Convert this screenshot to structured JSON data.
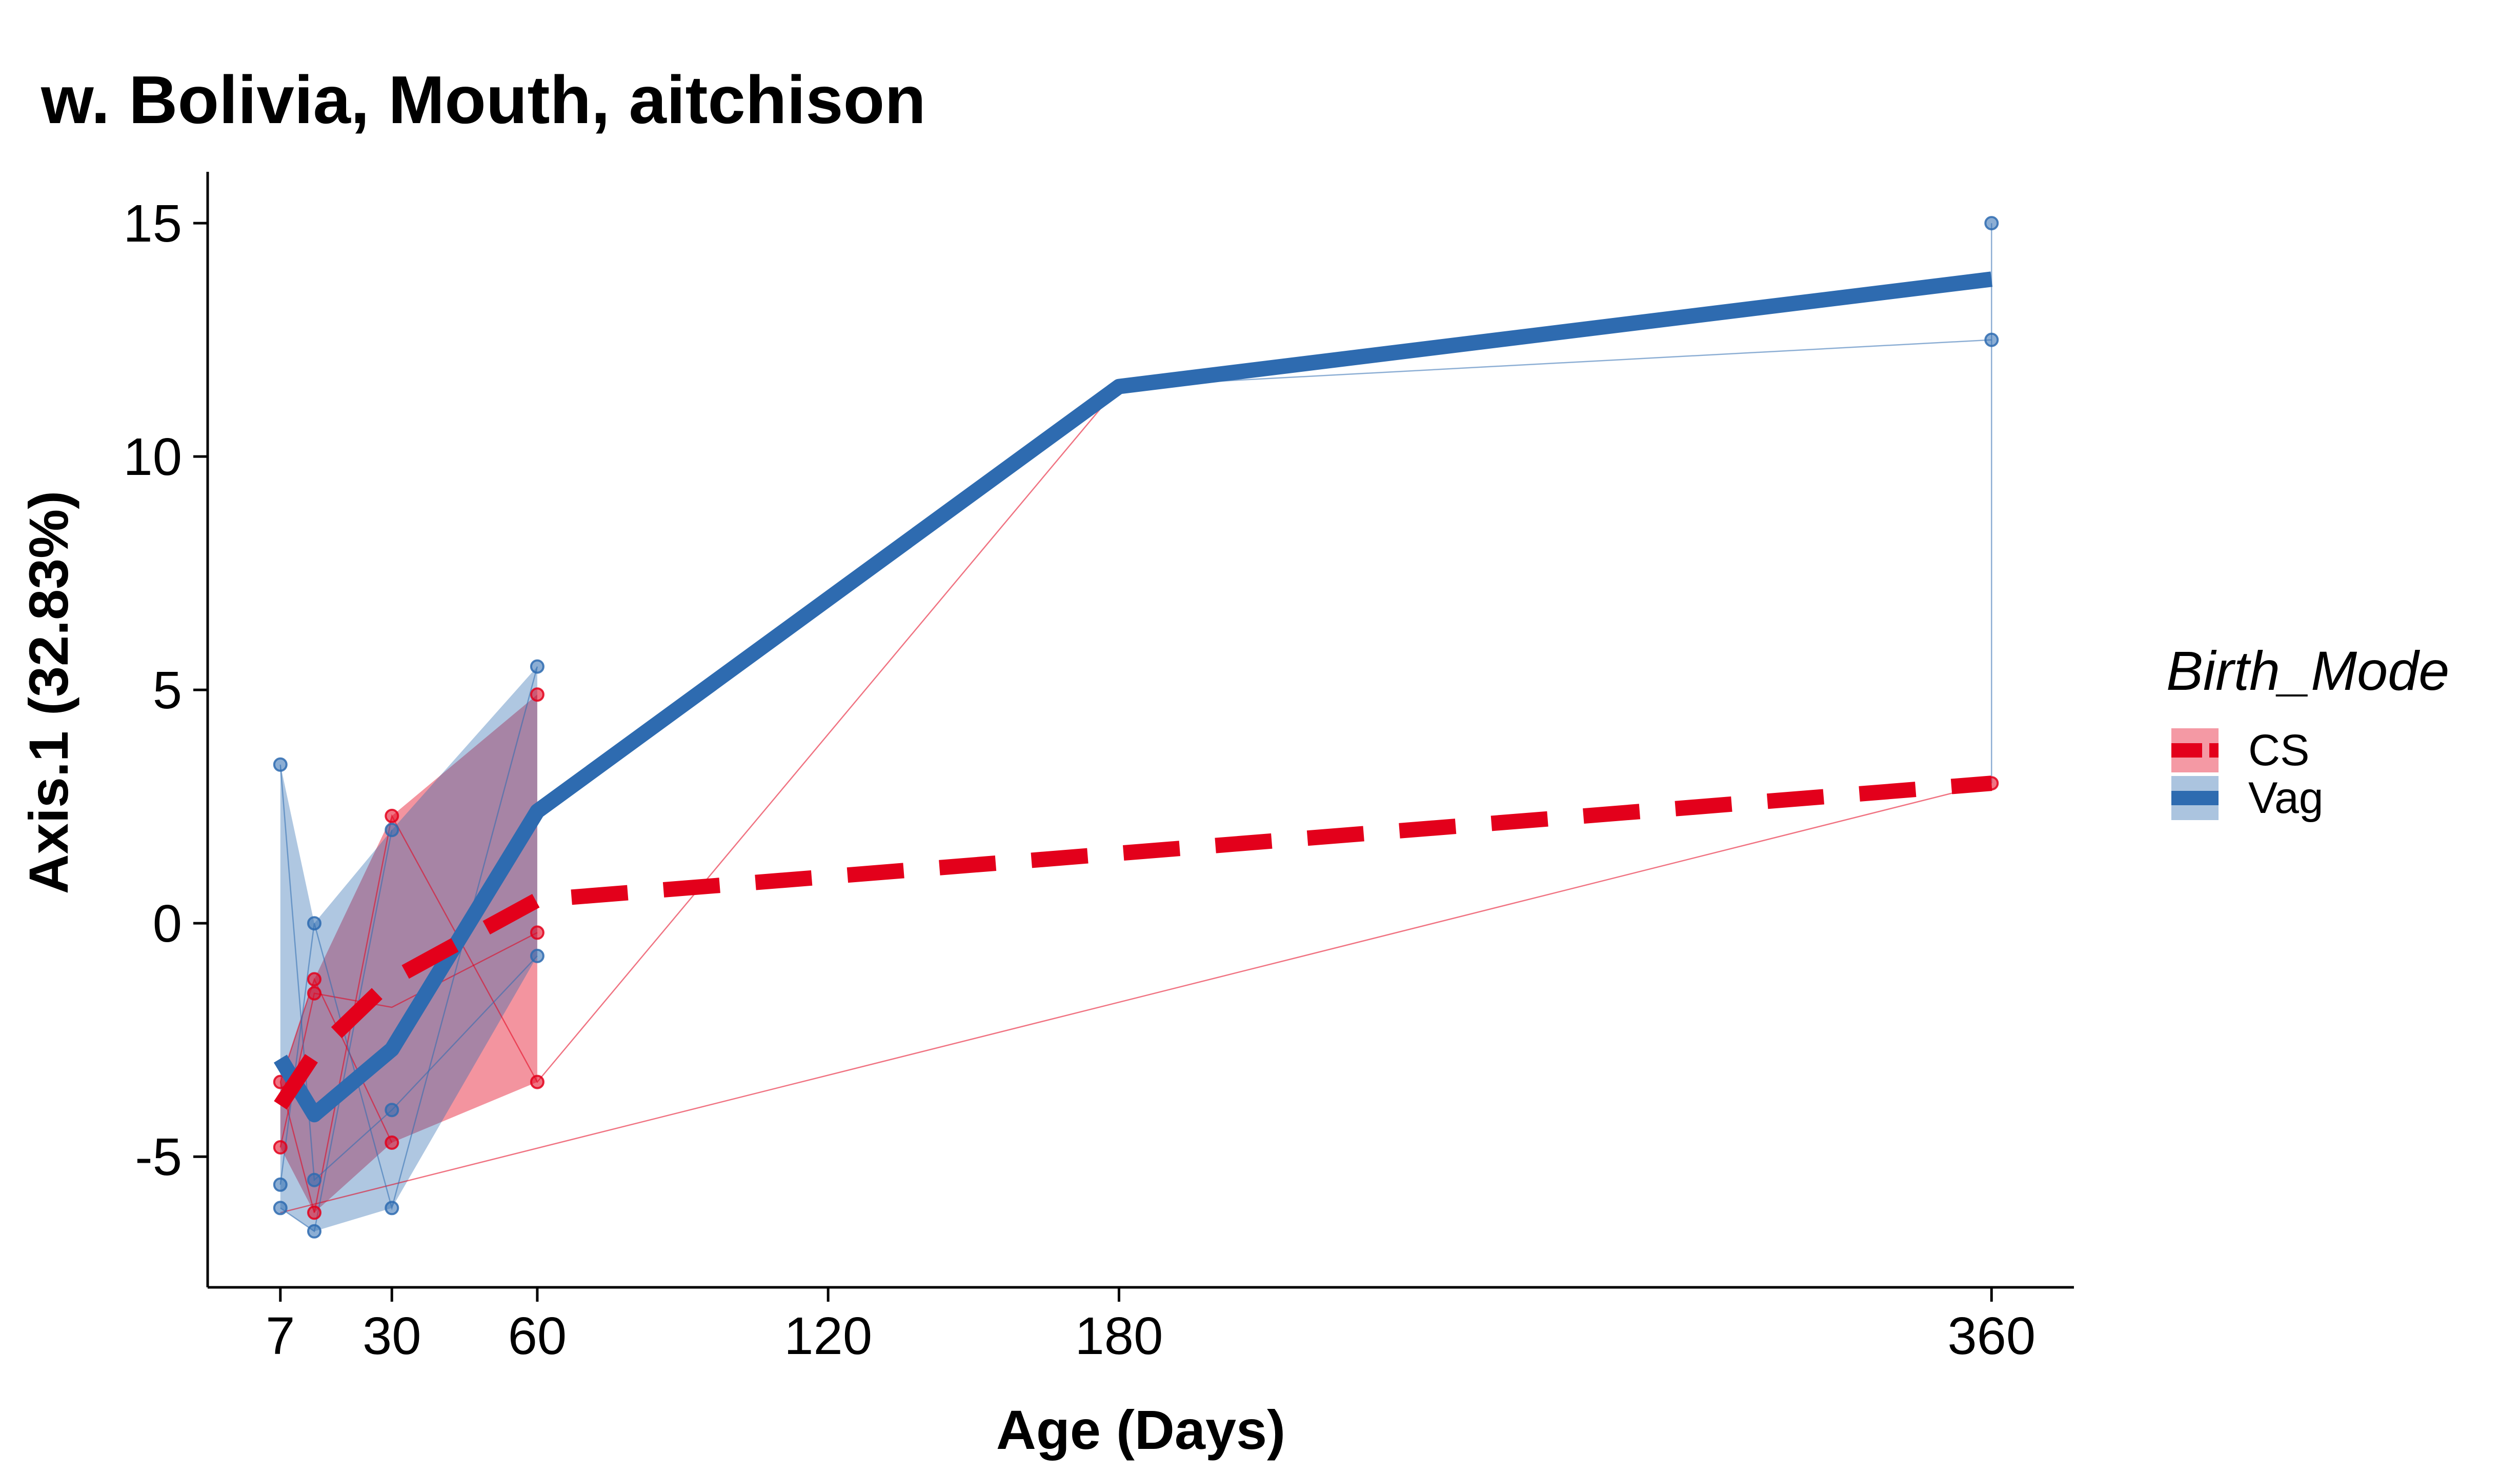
{
  "chart_data": {
    "type": "line",
    "title": "w. Bolivia, Mouth, aitchison",
    "xlabel": "Age (Days)",
    "ylabel": "Axis.1 (32.83%)",
    "xlim": [
      -8,
      377
    ],
    "ylim": [
      -7.8,
      16.1
    ],
    "x_ticks": [
      7,
      30,
      60,
      120,
      180,
      360
    ],
    "y_ticks": [
      -5,
      0,
      5,
      10,
      15
    ],
    "y_tick_labels": [
      "-5",
      "0",
      "5",
      "10",
      "15"
    ],
    "grid": false,
    "legend": {
      "title": "Birth_Mode",
      "placement": "right",
      "entries": [
        "CS",
        "Vag"
      ]
    },
    "series": [
      {
        "name": "CS",
        "color": "#E3001B",
        "line_style": "dashed",
        "mean": {
          "x": [
            7,
            14,
            30,
            60,
            180,
            360
          ],
          "y": [
            -3.9,
            -2.8,
            -1.2,
            0.5,
            1.5,
            3.0
          ]
        },
        "points": {
          "x": [
            7,
            7,
            14,
            14,
            14,
            30,
            30,
            60,
            60,
            60,
            360
          ],
          "y": [
            -3.4,
            -4.8,
            -1.2,
            -1.5,
            -6.2,
            2.3,
            -4.7,
            4.9,
            -0.2,
            -3.4,
            3.0
          ]
        },
        "ribbon": {
          "x": [
            7,
            14,
            30,
            60
          ],
          "ymin": [
            -4.8,
            -6.2,
            -4.7,
            -3.4
          ],
          "ymax": [
            -3.4,
            -1.2,
            2.3,
            4.9
          ]
        },
        "subject_lines": [
          {
            "x": [
              7,
              14,
              30,
              60
            ],
            "y": [
              -4.8,
              -1.5,
              -1.8,
              -0.2
            ]
          },
          {
            "x": [
              7,
              14,
              30
            ],
            "y": [
              -3.4,
              -1.2,
              -4.7
            ]
          },
          {
            "x": [
              14,
              30,
              60,
              180
            ],
            "y": [
              -6.2,
              2.3,
              -3.4,
              11.5
            ]
          },
          {
            "x": [
              7,
              14
            ],
            "y": [
              -3.4,
              -6.2
            ]
          },
          {
            "x": [
              7,
              360
            ],
            "y": [
              -6.2,
              3.0
            ]
          }
        ]
      },
      {
        "name": "Vag",
        "color": "#2E6BB0",
        "line_style": "solid",
        "mean": {
          "x": [
            7,
            14,
            30,
            60,
            180,
            360
          ],
          "y": [
            -2.9,
            -4.1,
            -2.7,
            2.4,
            11.5,
            13.8
          ]
        },
        "points": {
          "x": [
            7,
            7,
            7,
            14,
            14,
            14,
            30,
            30,
            30,
            60,
            60,
            180,
            360,
            360
          ],
          "y": [
            3.4,
            -5.6,
            -6.1,
            0.0,
            -5.5,
            -6.6,
            2.0,
            -4.0,
            -6.1,
            5.5,
            -0.7,
            11.5,
            15.0,
            12.5
          ]
        },
        "ribbon": {
          "x": [
            7,
            14,
            30,
            60
          ],
          "ymin": [
            -6.1,
            -6.6,
            -6.1,
            -0.7
          ],
          "ymax": [
            3.4,
            0.0,
            2.0,
            5.5
          ]
        },
        "subject_lines": [
          {
            "x": [
              7,
              14,
              30,
              60
            ],
            "y": [
              3.4,
              -5.5,
              -4.0,
              -0.7
            ]
          },
          {
            "x": [
              7,
              14,
              30,
              60
            ],
            "y": [
              -5.6,
              0.0,
              -6.1,
              5.5
            ]
          },
          {
            "x": [
              7,
              14,
              30
            ],
            "y": [
              -6.1,
              -6.6,
              2.0
            ]
          },
          {
            "x": [
              180,
              360
            ],
            "y": [
              11.5,
              12.5
            ]
          },
          {
            "x": [
              360,
              360
            ],
            "y": [
              12.5,
              3.0
            ]
          },
          {
            "x": [
              360,
              360
            ],
            "y": [
              15.0,
              12.5
            ]
          }
        ]
      }
    ]
  }
}
